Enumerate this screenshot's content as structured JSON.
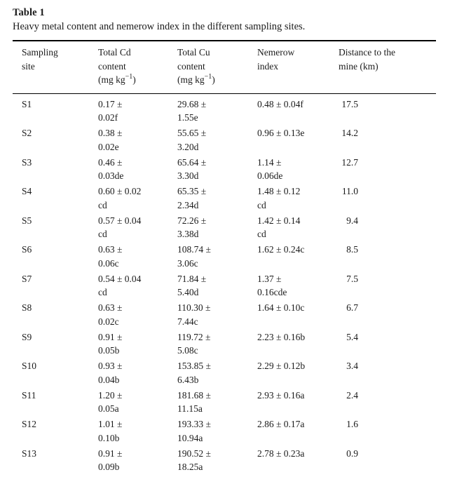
{
  "table": {
    "label": "Table 1",
    "caption": "Heavy metal content and nemerow index in the different sampling sites.",
    "columns": {
      "site": {
        "line1": "Sampling",
        "line2": "site"
      },
      "cd": {
        "line1": "Total Cd",
        "line2": "content",
        "unit_prefix": "(mg kg",
        "unit_sup": "−1",
        "unit_suffix": ")"
      },
      "cu": {
        "line1": "Total Cu",
        "line2": "content",
        "unit_prefix": "(mg kg",
        "unit_sup": "−1",
        "unit_suffix": ")"
      },
      "nemerow": {
        "line1": "Nemerow",
        "line2": "index"
      },
      "distance": {
        "line1": "Distance to the",
        "line2": "mine (km)"
      }
    },
    "rows": [
      {
        "site": "S1",
        "cd": "0.17 ±\n0.02f",
        "cu": "29.68 ±\n1.55e",
        "nemerow": "0.48 ± 0.04f",
        "distance": "17.5"
      },
      {
        "site": "S2",
        "cd": "0.38 ±\n0.02e",
        "cu": "55.65 ±\n3.20d",
        "nemerow": "0.96 ± 0.13e",
        "distance": "14.2"
      },
      {
        "site": "S3",
        "cd": "0.46 ±\n0.03de",
        "cu": "65.64 ±\n3.30d",
        "nemerow": "1.14 ±\n0.06de",
        "distance": "12.7"
      },
      {
        "site": "S4",
        "cd": "0.60 ± 0.02\ncd",
        "cu": "65.35 ±\n2.34d",
        "nemerow": "1.48 ± 0.12\ncd",
        "distance": "11.0"
      },
      {
        "site": "S5",
        "cd": "0.57 ± 0.04\ncd",
        "cu": "72.26 ±\n3.38d",
        "nemerow": "1.42 ± 0.14\ncd",
        "distance": "9.4"
      },
      {
        "site": "S6",
        "cd": "0.63 ±\n0.06c",
        "cu": "108.74 ±\n3.06c",
        "nemerow": "1.62 ± 0.24c",
        "distance": "8.5"
      },
      {
        "site": "S7",
        "cd": "0.54 ± 0.04\ncd",
        "cu": "71.84 ±\n5.40d",
        "nemerow": "1.37 ±\n0.16cde",
        "distance": "7.5"
      },
      {
        "site": "S8",
        "cd": "0.63 ±\n0.02c",
        "cu": "110.30 ±\n7.44c",
        "nemerow": "1.64 ± 0.10c",
        "distance": "6.7"
      },
      {
        "site": "S9",
        "cd": "0.91 ±\n0.05b",
        "cu": "119.72 ±\n5.08c",
        "nemerow": "2.23 ± 0.16b",
        "distance": "5.4"
      },
      {
        "site": "S10",
        "cd": "0.93 ±\n0.04b",
        "cu": "153.85 ±\n6.43b",
        "nemerow": "2.29 ± 0.12b",
        "distance": "3.4"
      },
      {
        "site": "S11",
        "cd": "1.20 ±\n0.05a",
        "cu": "181.68 ±\n11.15a",
        "nemerow": "2.93 ± 0.16a",
        "distance": "2.4"
      },
      {
        "site": "S12",
        "cd": "1.01 ±\n0.10b",
        "cu": "193.33 ±\n10.94a",
        "nemerow": "2.86 ± 0.17a",
        "distance": "1.6"
      },
      {
        "site": "S13",
        "cd": "0.91 ±\n0.09b",
        "cu": "190.52 ±\n18.25a",
        "nemerow": "2.78 ± 0.23a",
        "distance": "0.9"
      }
    ]
  }
}
